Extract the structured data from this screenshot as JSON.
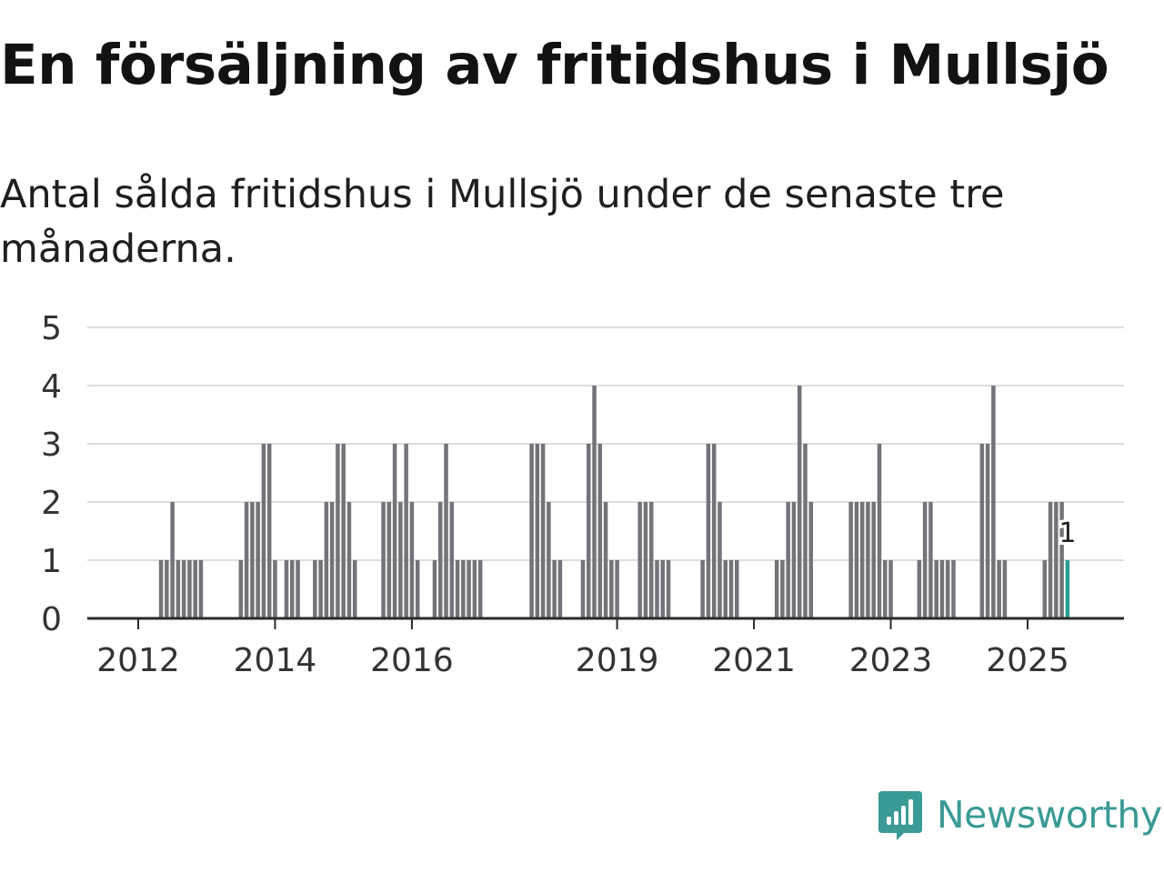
{
  "title": "En försäljning av fritidshus i Mullsjö",
  "subtitle": "Antal sålda fritidshus i Mullsjö under de senaste tre månaderna.",
  "brand": {
    "name": "Newsworthy"
  },
  "colors": {
    "bar": "#73737b",
    "highlight": "#2a9d8f",
    "grid": "#dddddd",
    "axis": "#2b2b2b",
    "brand": "#3a9a95"
  },
  "chart_data": {
    "type": "bar",
    "title": "",
    "xlabel": "",
    "ylabel": "",
    "ylim": [
      0,
      5
    ],
    "yticks": [
      0,
      1,
      2,
      3,
      4,
      5
    ],
    "xticks": [
      "2012",
      "2014",
      "2016",
      "2019",
      "2021",
      "2023",
      "2025"
    ],
    "grid": true,
    "highlight_label": "1",
    "bars": [
      {
        "x": "2012-05",
        "value": 1
      },
      {
        "x": "2012-06",
        "value": 1
      },
      {
        "x": "2012-07",
        "value": 2
      },
      {
        "x": "2012-08",
        "value": 1
      },
      {
        "x": "2012-09",
        "value": 1
      },
      {
        "x": "2012-10",
        "value": 1
      },
      {
        "x": "2012-11",
        "value": 1
      },
      {
        "x": "2012-12",
        "value": 1
      },
      {
        "x": "2013-07",
        "value": 1
      },
      {
        "x": "2013-08",
        "value": 2
      },
      {
        "x": "2013-09",
        "value": 2
      },
      {
        "x": "2013-10",
        "value": 2
      },
      {
        "x": "2013-11",
        "value": 3
      },
      {
        "x": "2013-12",
        "value": 3
      },
      {
        "x": "2014-01",
        "value": 1
      },
      {
        "x": "2014-03",
        "value": 1
      },
      {
        "x": "2014-04",
        "value": 1
      },
      {
        "x": "2014-05",
        "value": 1
      },
      {
        "x": "2014-08",
        "value": 1
      },
      {
        "x": "2014-09",
        "value": 1
      },
      {
        "x": "2014-10",
        "value": 2
      },
      {
        "x": "2014-11",
        "value": 2
      },
      {
        "x": "2014-12",
        "value": 3
      },
      {
        "x": "2015-01",
        "value": 3
      },
      {
        "x": "2015-02",
        "value": 2
      },
      {
        "x": "2015-03",
        "value": 1
      },
      {
        "x": "2015-08",
        "value": 2
      },
      {
        "x": "2015-09",
        "value": 2
      },
      {
        "x": "2015-10",
        "value": 3
      },
      {
        "x": "2015-11",
        "value": 2
      },
      {
        "x": "2015-12",
        "value": 3
      },
      {
        "x": "2016-01",
        "value": 2
      },
      {
        "x": "2016-02",
        "value": 1
      },
      {
        "x": "2016-05",
        "value": 1
      },
      {
        "x": "2016-06",
        "value": 2
      },
      {
        "x": "2016-07",
        "value": 3
      },
      {
        "x": "2016-08",
        "value": 2
      },
      {
        "x": "2016-09",
        "value": 1
      },
      {
        "x": "2016-10",
        "value": 1
      },
      {
        "x": "2016-11",
        "value": 1
      },
      {
        "x": "2016-12",
        "value": 1
      },
      {
        "x": "2017-01",
        "value": 1
      },
      {
        "x": "2017-10",
        "value": 3
      },
      {
        "x": "2017-11",
        "value": 3
      },
      {
        "x": "2017-12",
        "value": 3
      },
      {
        "x": "2018-01",
        "value": 2
      },
      {
        "x": "2018-02",
        "value": 1
      },
      {
        "x": "2018-03",
        "value": 1
      },
      {
        "x": "2018-07",
        "value": 1
      },
      {
        "x": "2018-08",
        "value": 3
      },
      {
        "x": "2018-09",
        "value": 4
      },
      {
        "x": "2018-10",
        "value": 3
      },
      {
        "x": "2018-11",
        "value": 2
      },
      {
        "x": "2018-12",
        "value": 1
      },
      {
        "x": "2019-01",
        "value": 1
      },
      {
        "x": "2019-05",
        "value": 2
      },
      {
        "x": "2019-06",
        "value": 2
      },
      {
        "x": "2019-07",
        "value": 2
      },
      {
        "x": "2019-08",
        "value": 1
      },
      {
        "x": "2019-09",
        "value": 1
      },
      {
        "x": "2019-10",
        "value": 1
      },
      {
        "x": "2020-04",
        "value": 1
      },
      {
        "x": "2020-05",
        "value": 3
      },
      {
        "x": "2020-06",
        "value": 3
      },
      {
        "x": "2020-07",
        "value": 2
      },
      {
        "x": "2020-08",
        "value": 1
      },
      {
        "x": "2020-09",
        "value": 1
      },
      {
        "x": "2020-10",
        "value": 1
      },
      {
        "x": "2021-05",
        "value": 1
      },
      {
        "x": "2021-06",
        "value": 1
      },
      {
        "x": "2021-07",
        "value": 2
      },
      {
        "x": "2021-08",
        "value": 2
      },
      {
        "x": "2021-09",
        "value": 4
      },
      {
        "x": "2021-10",
        "value": 3
      },
      {
        "x": "2021-11",
        "value": 2
      },
      {
        "x": "2022-06",
        "value": 2
      },
      {
        "x": "2022-07",
        "value": 2
      },
      {
        "x": "2022-08",
        "value": 2
      },
      {
        "x": "2022-09",
        "value": 2
      },
      {
        "x": "2022-10",
        "value": 2
      },
      {
        "x": "2022-11",
        "value": 3
      },
      {
        "x": "2022-12",
        "value": 1
      },
      {
        "x": "2023-01",
        "value": 1
      },
      {
        "x": "2023-06",
        "value": 1
      },
      {
        "x": "2023-07",
        "value": 2
      },
      {
        "x": "2023-08",
        "value": 2
      },
      {
        "x": "2023-09",
        "value": 1
      },
      {
        "x": "2023-10",
        "value": 1
      },
      {
        "x": "2023-11",
        "value": 1
      },
      {
        "x": "2023-12",
        "value": 1
      },
      {
        "x": "2024-05",
        "value": 3
      },
      {
        "x": "2024-06",
        "value": 3
      },
      {
        "x": "2024-07",
        "value": 4
      },
      {
        "x": "2024-08",
        "value": 1
      },
      {
        "x": "2024-09",
        "value": 1
      },
      {
        "x": "2025-04",
        "value": 1
      },
      {
        "x": "2025-05",
        "value": 2
      },
      {
        "x": "2025-06",
        "value": 2
      },
      {
        "x": "2025-07",
        "value": 2
      },
      {
        "x": "2025-08",
        "value": 1,
        "highlight": true
      }
    ]
  }
}
